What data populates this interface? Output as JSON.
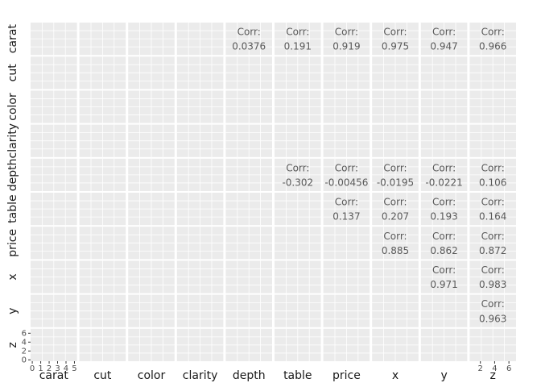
{
  "chart_data": {
    "type": "pairs",
    "variables": [
      "carat",
      "cut",
      "color",
      "clarity",
      "depth",
      "table",
      "price",
      "x",
      "y",
      "z"
    ],
    "corr_label": "Corr:",
    "correlations": [
      [
        null,
        null,
        null,
        null,
        0.0376,
        0.191,
        0.919,
        0.975,
        0.947,
        0.966
      ],
      [
        null,
        null,
        null,
        null,
        null,
        null,
        null,
        null,
        null,
        null
      ],
      [
        null,
        null,
        null,
        null,
        null,
        null,
        null,
        null,
        null,
        null
      ],
      [
        null,
        null,
        null,
        null,
        null,
        null,
        null,
        null,
        null,
        null
      ],
      [
        null,
        null,
        null,
        null,
        null,
        -0.302,
        -0.00456,
        -0.0195,
        -0.0221,
        0.106
      ],
      [
        null,
        null,
        null,
        null,
        null,
        null,
        0.137,
        0.207,
        0.193,
        0.164
      ],
      [
        null,
        null,
        null,
        null,
        null,
        null,
        null,
        0.885,
        0.862,
        0.872
      ],
      [
        null,
        null,
        null,
        null,
        null,
        null,
        null,
        null,
        0.971,
        0.983
      ],
      [
        null,
        null,
        null,
        null,
        null,
        null,
        null,
        null,
        null,
        0.963
      ],
      [
        null,
        null,
        null,
        null,
        null,
        null,
        null,
        null,
        null,
        null
      ]
    ],
    "x_axes": {
      "carat": {
        "lim": [
          -0.2,
          5.3
        ],
        "ticks": [
          0,
          1,
          2,
          3,
          4,
          5
        ]
      },
      "z": {
        "lim": [
          0.5,
          7
        ],
        "ticks": [
          2,
          4,
          6
        ]
      }
    },
    "y_axes": {
      "z": {
        "lim": [
          -0.3,
          7
        ],
        "ticks": [
          0,
          2,
          4,
          6
        ]
      }
    }
  }
}
